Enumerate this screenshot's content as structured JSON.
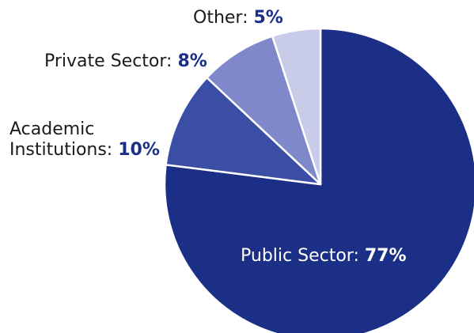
{
  "chart_data": {
    "type": "pie",
    "slices": [
      {
        "label": "Public Sector",
        "value": 77,
        "value_label": "77%",
        "color": "#1c2f86"
      },
      {
        "label": "Academic Institutions",
        "label_lines": [
          "Academic",
          "Institutions"
        ],
        "value": 10,
        "value_label": "10%",
        "color": "#3a4ea5"
      },
      {
        "label": "Private Sector",
        "value": 8,
        "value_label": "8%",
        "color": "#7f88cb"
      },
      {
        "label": "Other",
        "value": 5,
        "value_label": "5%",
        "color": "#c8cce9"
      }
    ],
    "start_angle_deg": 0,
    "direction": "clockwise",
    "label_color": "#1b1b1b",
    "value_color": "#1c2f86",
    "inside_label_color": "#ffffff",
    "separator_color": "#ffffff"
  }
}
